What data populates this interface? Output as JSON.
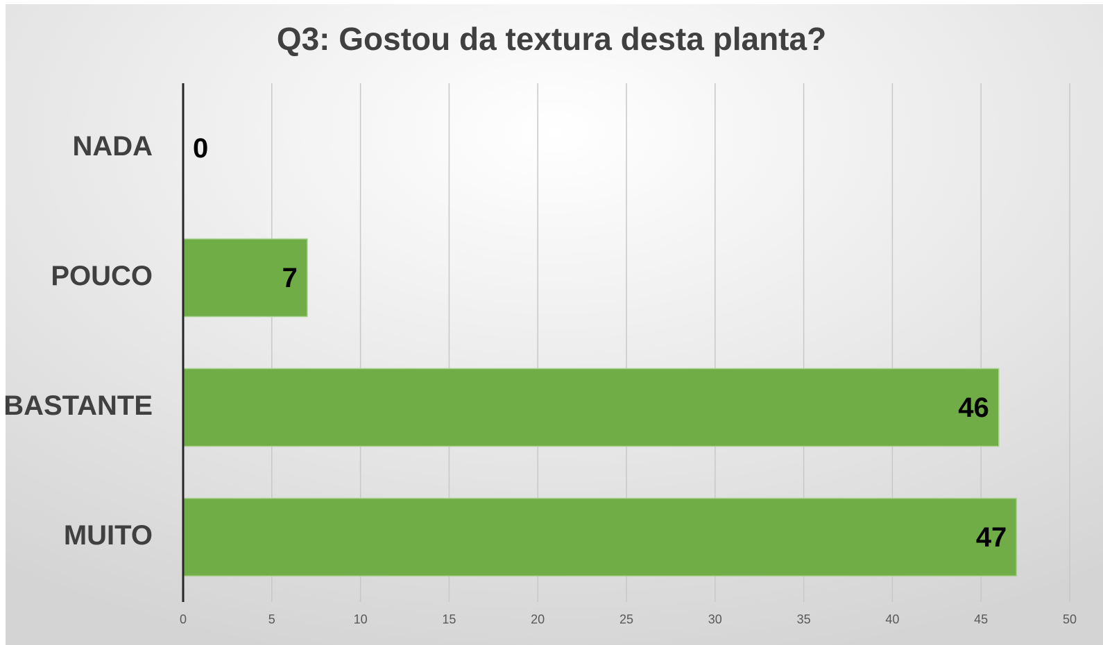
{
  "chart_data": {
    "type": "bar",
    "orientation": "horizontal",
    "title": "Q3: Gostou da textura desta planta?",
    "categories": [
      "NADA",
      "POUCO",
      "BASTANTE",
      "MUITO"
    ],
    "values": [
      0,
      7,
      46,
      47
    ],
    "color": "#70ad47",
    "xlim": [
      0,
      50
    ],
    "xticks": [
      0,
      5,
      10,
      15,
      20,
      25,
      30,
      35,
      40,
      45,
      50
    ],
    "grid": true
  }
}
